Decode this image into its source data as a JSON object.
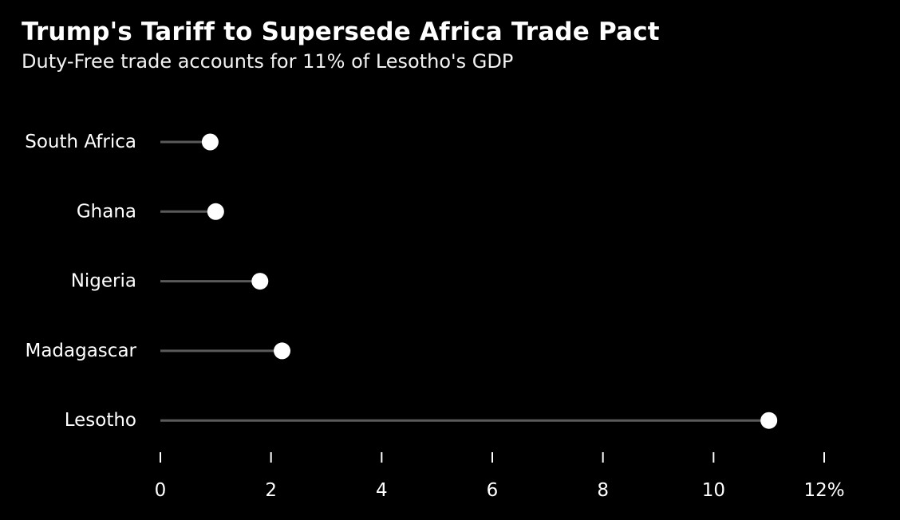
{
  "title": "Trump's Tariff to Supersede Africa Trade Pact",
  "subtitle": "Duty-Free trade accounts for 11% of Lesotho's GDP",
  "colors": {
    "background": "#000000",
    "text": "#ffffff",
    "stem": "#5a5a5a",
    "dot": "#ffffff",
    "axis": "#ffffff"
  },
  "chart_data": {
    "type": "lollipop",
    "categories": [
      "South Africa",
      "Ghana",
      "Nigeria",
      "Madagascar",
      "Lesotho"
    ],
    "values": [
      0.9,
      1.0,
      1.8,
      2.2,
      11.0
    ],
    "xlim": [
      0,
      12
    ],
    "xticks": [
      0,
      2,
      4,
      6,
      8,
      10,
      12
    ],
    "xtick_labels": [
      "0",
      "2",
      "4",
      "6",
      "8",
      "10",
      "12%"
    ],
    "grid": false
  }
}
